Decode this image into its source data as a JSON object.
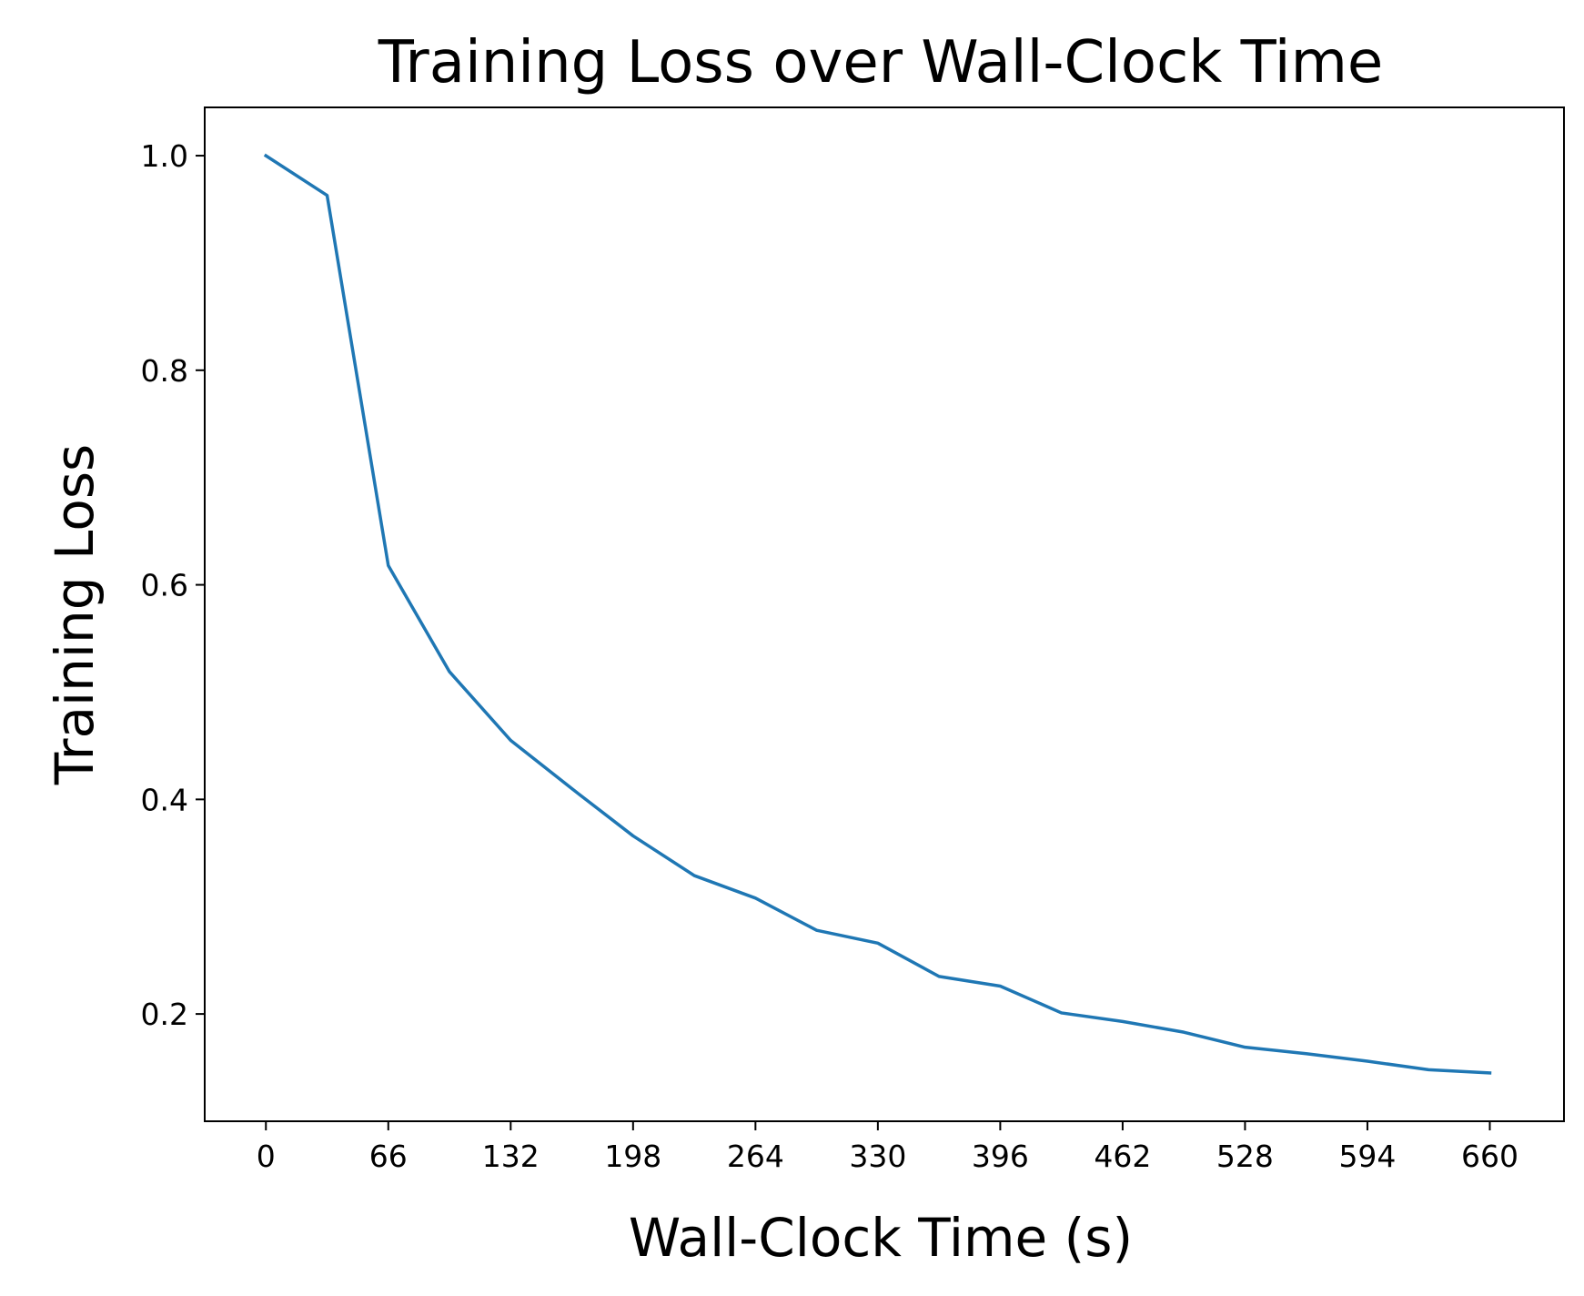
{
  "chart_data": {
    "type": "line",
    "title": "Training Loss over Wall-Clock Time",
    "xlabel": "Wall-Clock Time (s)",
    "ylabel": "Training Loss",
    "xlim": [
      -33,
      700
    ],
    "ylim": [
      0.1,
      1.045
    ],
    "x_ticks": [
      0,
      66,
      132,
      198,
      264,
      330,
      396,
      462,
      528,
      594,
      660
    ],
    "y_ticks": [
      0.2,
      0.4,
      0.6,
      0.8,
      1.0
    ],
    "y_tick_labels": [
      "0.2",
      "0.4",
      "0.6",
      "0.8",
      "1.0"
    ],
    "grid": false,
    "legend": "none",
    "series": [
      {
        "color": "#1f77b4",
        "x": [
          0,
          33,
          66,
          99,
          132,
          165,
          198,
          231,
          264,
          297,
          330,
          363,
          396,
          429,
          462,
          495,
          528,
          561,
          594,
          627,
          660
        ],
        "y": [
          1.0,
          0.963,
          0.618,
          0.519,
          0.455,
          0.41,
          0.366,
          0.329,
          0.308,
          0.278,
          0.266,
          0.235,
          0.226,
          0.201,
          0.193,
          0.183,
          0.169,
          0.163,
          0.156,
          0.148,
          0.145
        ]
      }
    ]
  }
}
